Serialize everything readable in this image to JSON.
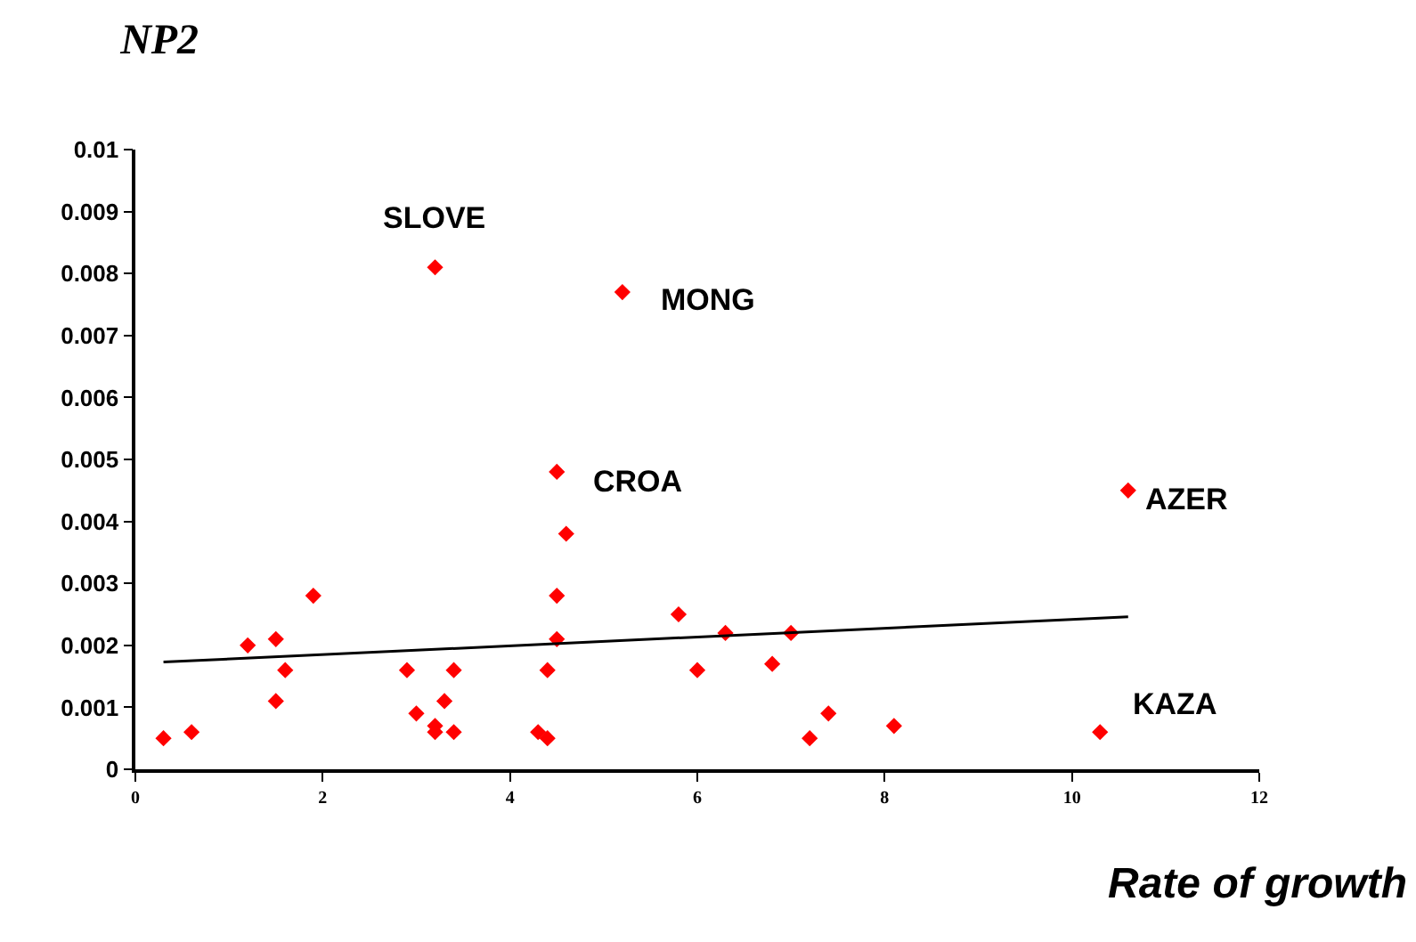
{
  "chart_data": {
    "type": "scatter",
    "title": "NP2",
    "xlabel": "Rate of growth",
    "xlim": [
      0,
      12
    ],
    "xticks": [
      0,
      2,
      4,
      6,
      8,
      10,
      12
    ],
    "ylim": [
      0,
      0.01
    ],
    "yticks": [
      0,
      0.001,
      0.002,
      0.003,
      0.004,
      0.005,
      0.006,
      0.007,
      0.008,
      0.009,
      0.01
    ],
    "series": [
      {
        "marker": "diamond",
        "color": "#ff0000",
        "x": [
          0.3,
          0.6,
          1.2,
          1.5,
          1.5,
          1.6,
          1.9,
          2.9,
          3.0,
          3.2,
          3.2,
          3.3,
          3.4,
          3.4,
          3.2,
          4.3,
          4.4,
          4.4,
          4.5,
          4.5,
          4.5,
          4.6,
          5.2,
          5.8,
          6.0,
          6.3,
          6.8,
          7.0,
          7.2,
          7.4,
          8.1,
          10.3,
          10.6
        ],
        "values": [
          0.0005,
          0.0006,
          0.002,
          0.0021,
          0.0011,
          0.0016,
          0.0028,
          0.0016,
          0.0009,
          0.0007,
          0.0006,
          0.0011,
          0.0016,
          0.0006,
          0.0081,
          0.0006,
          0.0005,
          0.0016,
          0.0021,
          0.0028,
          0.0048,
          0.0038,
          0.0077,
          0.0025,
          0.0016,
          0.0022,
          0.0017,
          0.0022,
          0.0005,
          0.0009,
          0.0007,
          0.0006,
          0.0045
        ]
      },
      {
        "type": "line",
        "color": "#000000",
        "x": [
          0.3,
          10.6
        ],
        "values": [
          0.00173,
          0.00246
        ]
      }
    ],
    "annotations": [
      {
        "text": "SLOVE",
        "x": 3.2,
        "y": 0.0081
      },
      {
        "text": "MONG",
        "x": 5.2,
        "y": 0.0077
      },
      {
        "text": "CROA",
        "x": 4.5,
        "y": 0.0048
      },
      {
        "text": "AZER",
        "x": 10.6,
        "y": 0.0045
      },
      {
        "text": "KAZA",
        "x": 10.3,
        "y": 0.0006
      }
    ]
  }
}
